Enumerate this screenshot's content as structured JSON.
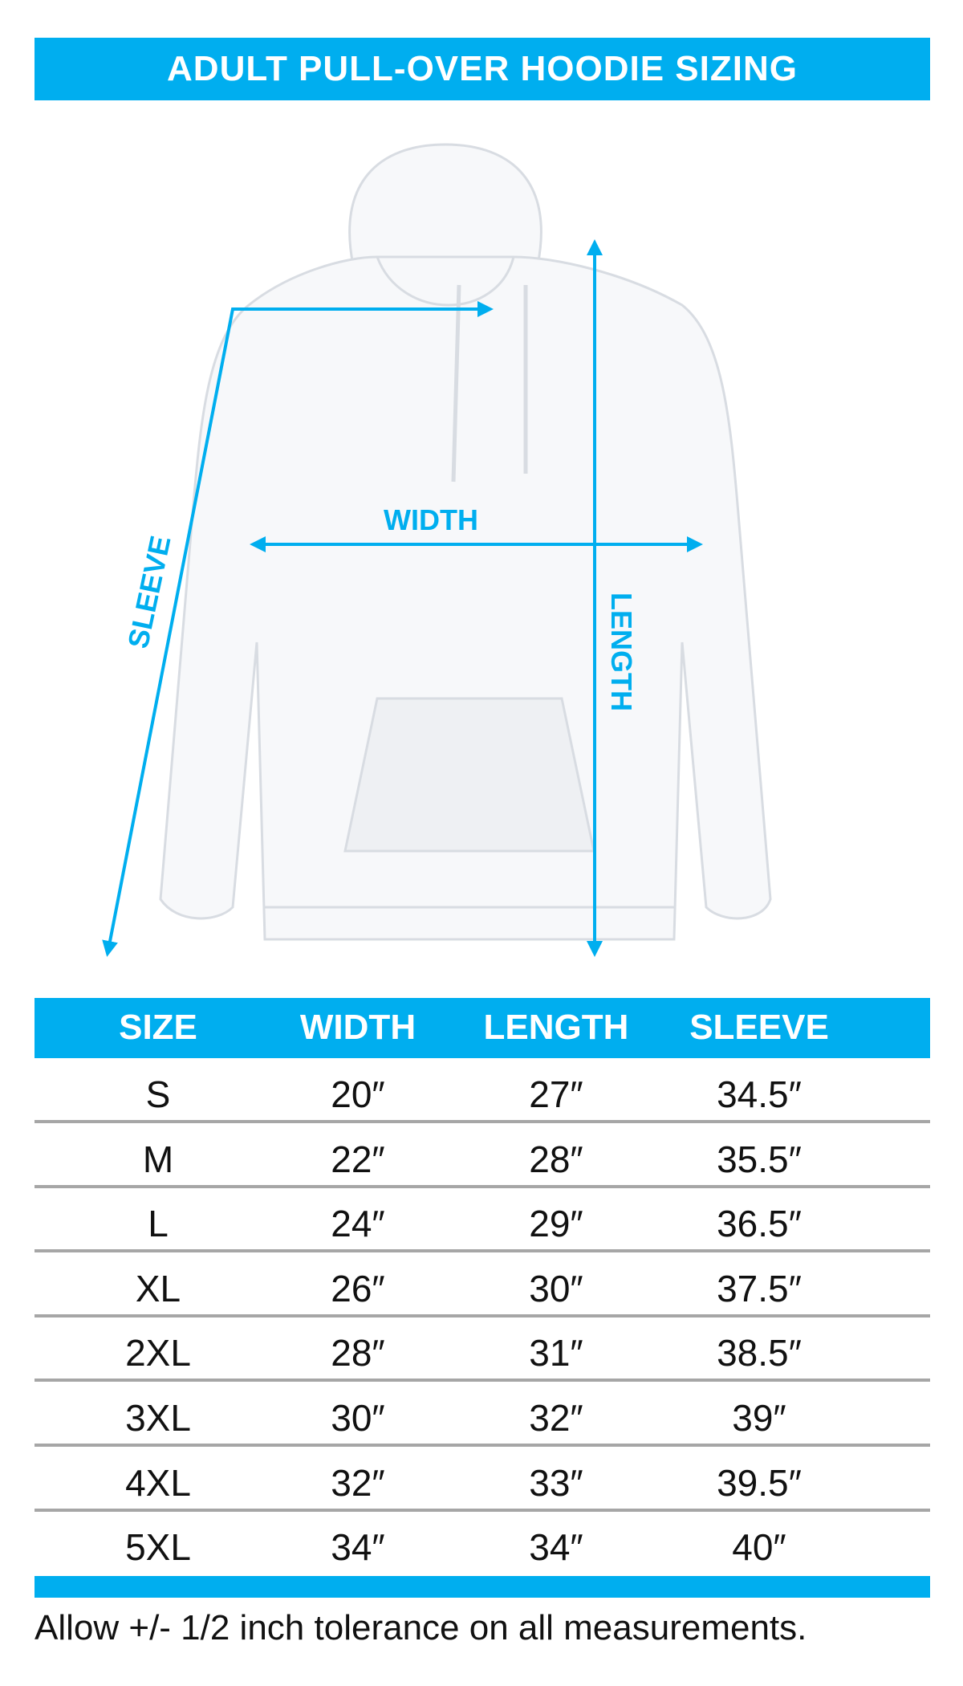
{
  "title": "ADULT PULL-OVER HOODIE SIZING",
  "diagram": {
    "labels": {
      "width": "WIDTH",
      "length": "LENGTH",
      "sleeve": "SLEEVE"
    },
    "accent_color": "#00aeef"
  },
  "table": {
    "headers": [
      "SIZE",
      "WIDTH",
      "LENGTH",
      "SLEEVE"
    ],
    "rows": [
      [
        "S",
        "20″",
        "27″",
        "34.5″"
      ],
      [
        "M",
        "22″",
        "28″",
        "35.5″"
      ],
      [
        "L",
        "24″",
        "29″",
        "36.5″"
      ],
      [
        "XL",
        "26″",
        "30″",
        "37.5″"
      ],
      [
        "2XL",
        "28″",
        "31″",
        "38.5″"
      ],
      [
        "3XL",
        "30″",
        "32″",
        "39″"
      ],
      [
        "4XL",
        "32″",
        "33″",
        "39.5″"
      ],
      [
        "5XL",
        "34″",
        "34″",
        "40″"
      ]
    ]
  },
  "footer": "Allow +/- 1/2 inch tolerance on all measurements."
}
